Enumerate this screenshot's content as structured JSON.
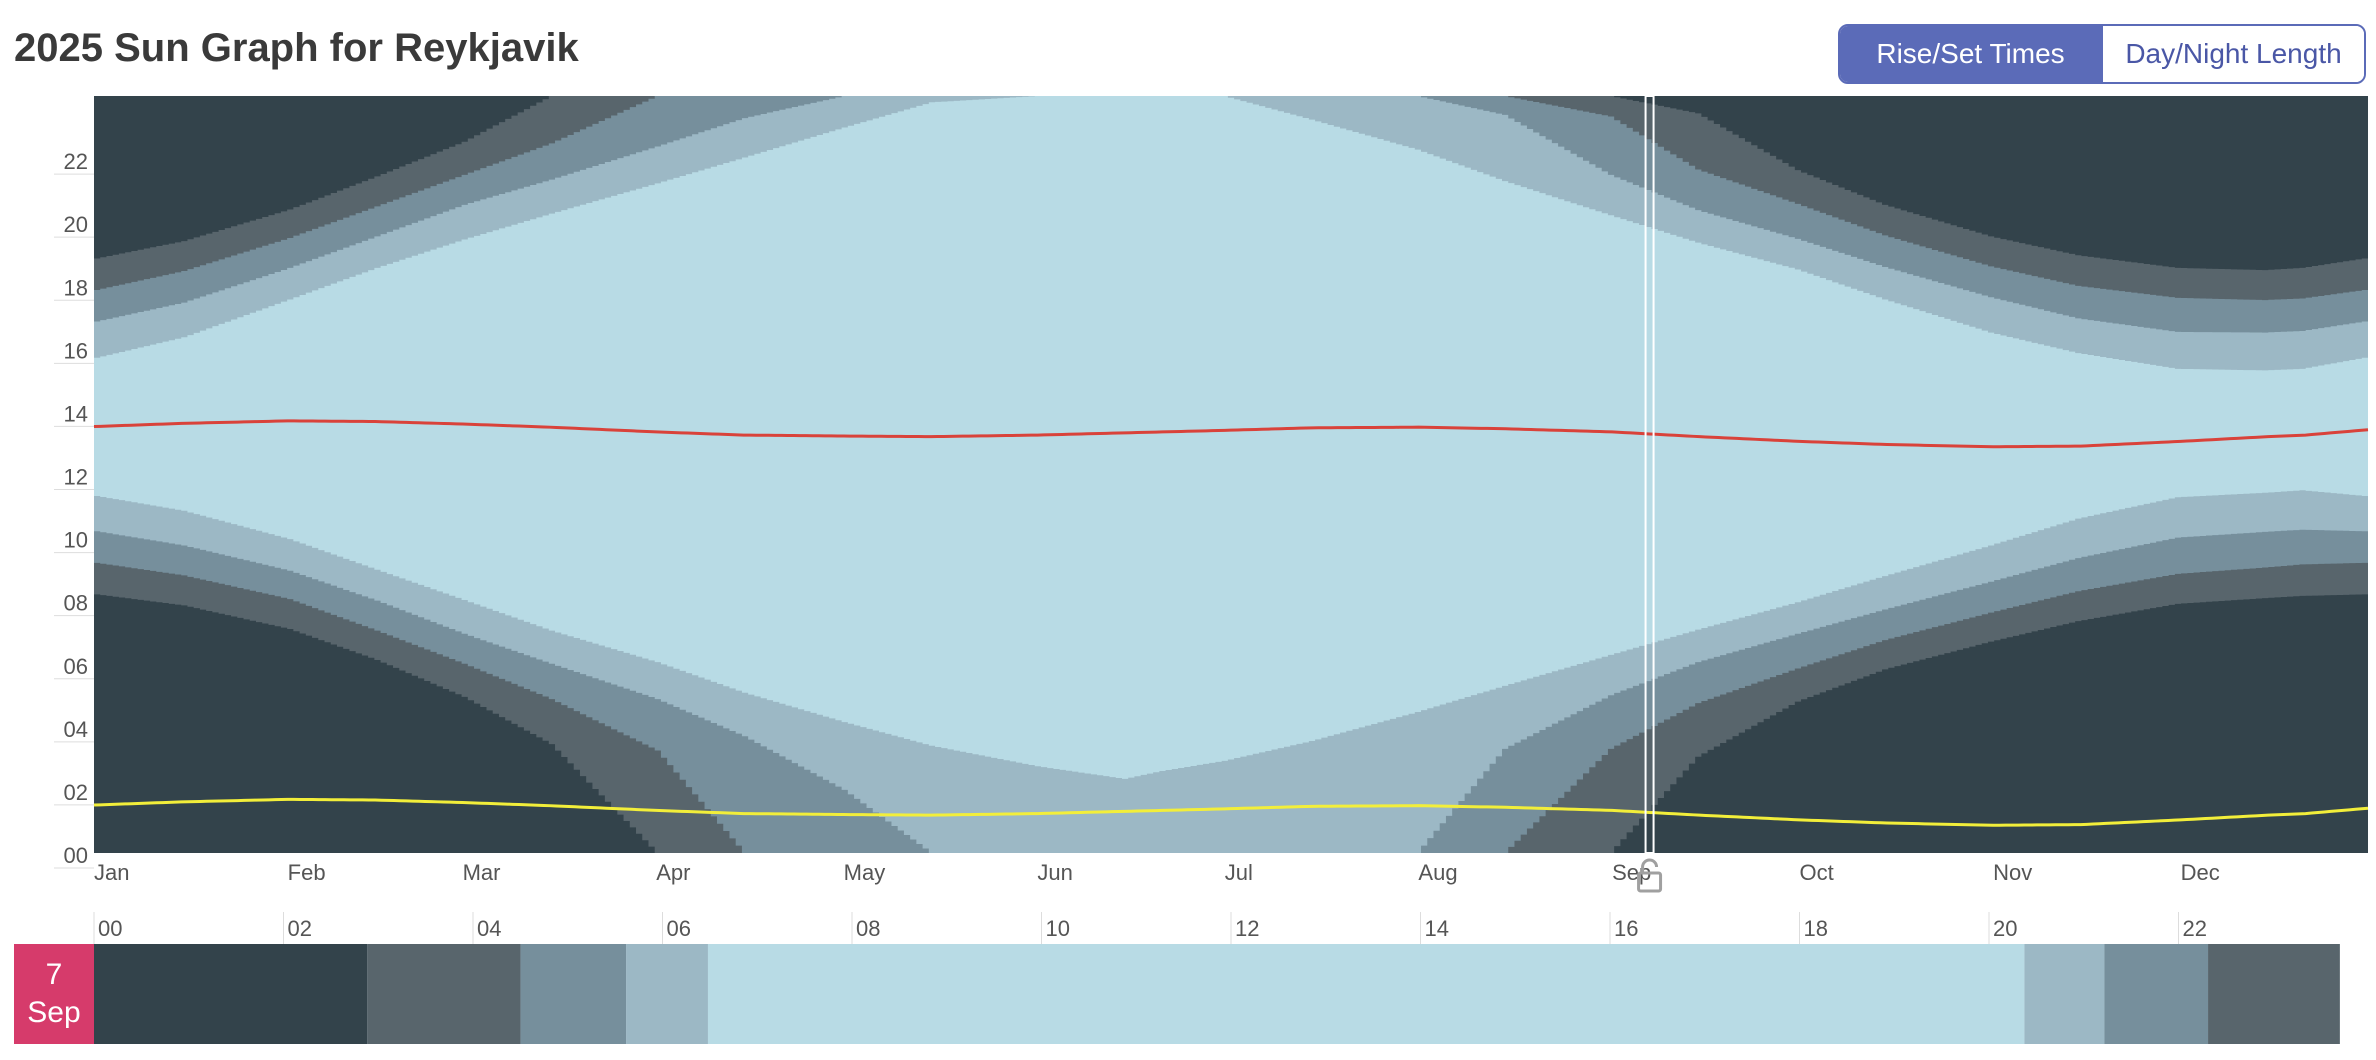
{
  "header": {
    "title": "2025 Sun Graph for Reykjavik"
  },
  "toggle": {
    "rise_set_label": "Rise/Set Times",
    "day_night_label": "Day/Night Length",
    "active": "rise_set"
  },
  "day_badge": {
    "day": "7",
    "month": "Sep"
  },
  "colors": {
    "night": "#33434b",
    "astro": "#58656c",
    "nautical": "#768f9c",
    "civil": "#9cb8c5",
    "day": "#b8dbe5",
    "noon_line": "#d9423a",
    "midnight_line": "#f2ee3a",
    "selection": "#ffffff",
    "badge": "#d63b6b"
  },
  "chart_data": {
    "type": "area",
    "x_unit": "day of year 2025",
    "y_unit": "hour of day",
    "ylim": [
      0,
      24
    ],
    "xlim": [
      1,
      365
    ],
    "y_ticks": [
      "00",
      "02",
      "04",
      "06",
      "08",
      "10",
      "12",
      "14",
      "16",
      "18",
      "20",
      "22"
    ],
    "month_labels": [
      "Jan",
      "Feb",
      "Mar",
      "Apr",
      "May",
      "Jun",
      "Jul",
      "Aug",
      "Sep",
      "Oct",
      "Nov",
      "Dec"
    ],
    "selected_day": 250,
    "bands_doy": [
      1,
      15,
      32,
      46,
      60,
      74,
      91,
      105,
      121,
      135,
      152,
      166,
      172,
      182,
      196,
      213,
      227,
      244,
      258,
      274,
      288,
      305,
      319,
      335,
      349,
      355,
      365
    ],
    "sunrise": [
      11.32,
      10.85,
      9.95,
      8.98,
      8.02,
      7.05,
      6.05,
      5.08,
      4.15,
      3.4,
      2.75,
      2.35,
      2.6,
      2.92,
      3.55,
      4.47,
      5.3,
      6.28,
      7.08,
      7.95,
      8.78,
      9.75,
      10.6,
      11.28,
      11.42,
      11.5,
      11.32
    ],
    "sunset": [
      15.7,
      16.35,
      17.55,
      18.55,
      19.45,
      20.27,
      21.23,
      22.05,
      23.0,
      23.8,
      24.0,
      24.0,
      24.0,
      24.0,
      23.25,
      22.3,
      21.3,
      20.22,
      19.35,
      18.5,
      17.55,
      16.5,
      15.85,
      15.35,
      15.3,
      15.35,
      15.7
    ],
    "civil_dawn": [
      10.2,
      9.75,
      8.95,
      8.0,
      6.95,
      6.0,
      4.88,
      3.7,
      2.0,
      0,
      0,
      0,
      0,
      0,
      0,
      0,
      3.3,
      5.0,
      6.05,
      6.95,
      7.72,
      8.6,
      9.35,
      10.0,
      10.18,
      10.25,
      10.2
    ],
    "civil_dusk": [
      16.85,
      17.45,
      18.55,
      19.55,
      20.55,
      21.35,
      22.4,
      23.3,
      24,
      24,
      24,
      24,
      24,
      24,
      24,
      24,
      23.4,
      21.5,
      20.38,
      19.47,
      18.58,
      17.62,
      16.95,
      16.52,
      16.5,
      16.55,
      16.85
    ],
    "nautical_dawn": [
      9.2,
      8.8,
      8.05,
      7.05,
      6.0,
      4.88,
      3.25,
      0,
      0,
      0,
      0,
      0,
      0,
      0,
      0,
      0,
      0,
      3.3,
      4.75,
      5.85,
      6.75,
      7.62,
      8.3,
      8.85,
      9.05,
      9.15,
      9.2
    ],
    "nautical_dusk": [
      17.85,
      18.45,
      19.5,
      20.5,
      21.5,
      22.5,
      24,
      24,
      24,
      24,
      24,
      24,
      24,
      24,
      24,
      24,
      24,
      23.35,
      21.67,
      20.58,
      19.58,
      18.6,
      17.98,
      17.6,
      17.53,
      17.58,
      17.85
    ],
    "astro_dawn": [
      8.2,
      7.85,
      7.1,
      6.12,
      4.95,
      3.45,
      0,
      0,
      0,
      0,
      0,
      0,
      0,
      0,
      0,
      0,
      0,
      0,
      3.05,
      4.8,
      5.82,
      6.7,
      7.35,
      7.9,
      8.08,
      8.15,
      8.2
    ],
    "astro_dusk": [
      18.85,
      19.4,
      20.4,
      21.45,
      22.55,
      24,
      24,
      24,
      24,
      24,
      24,
      24,
      24,
      24,
      24,
      24,
      24,
      24,
      23.45,
      21.65,
      20.55,
      19.55,
      18.95,
      18.55,
      18.48,
      18.55,
      18.85
    ],
    "solar_noon": [
      13.52,
      13.62,
      13.7,
      13.68,
      13.6,
      13.5,
      13.35,
      13.25,
      13.22,
      13.2,
      13.25,
      13.32,
      13.35,
      13.4,
      13.48,
      13.5,
      13.45,
      13.35,
      13.2,
      13.05,
      12.95,
      12.88,
      12.9,
      13.05,
      13.2,
      13.25,
      13.42
    ],
    "solar_midnight": [
      1.52,
      1.62,
      1.7,
      1.68,
      1.6,
      1.5,
      1.35,
      1.25,
      1.22,
      1.2,
      1.25,
      1.32,
      1.35,
      1.4,
      1.48,
      1.5,
      1.45,
      1.35,
      1.2,
      1.05,
      0.95,
      0.88,
      0.9,
      1.05,
      1.2,
      1.25,
      1.42
    ],
    "timeline": {
      "labels": [
        "00",
        "02",
        "04",
        "06",
        "08",
        "10",
        "12",
        "14",
        "16",
        "18",
        "20",
        "22"
      ],
      "segments": [
        {
          "from": 0,
          "to": 2.9,
          "phase": "night"
        },
        {
          "from": 2.9,
          "to": 4.53,
          "phase": "astro"
        },
        {
          "from": 4.53,
          "to": 5.65,
          "phase": "nautical"
        },
        {
          "from": 5.65,
          "to": 6.52,
          "phase": "civil"
        },
        {
          "from": 6.52,
          "to": 20.5,
          "phase": "day"
        },
        {
          "from": 20.5,
          "to": 21.35,
          "phase": "civil"
        },
        {
          "from": 21.35,
          "to": 22.45,
          "phase": "nautical"
        },
        {
          "from": 22.45,
          "to": 23.85,
          "phase": "astro"
        }
      ]
    }
  }
}
